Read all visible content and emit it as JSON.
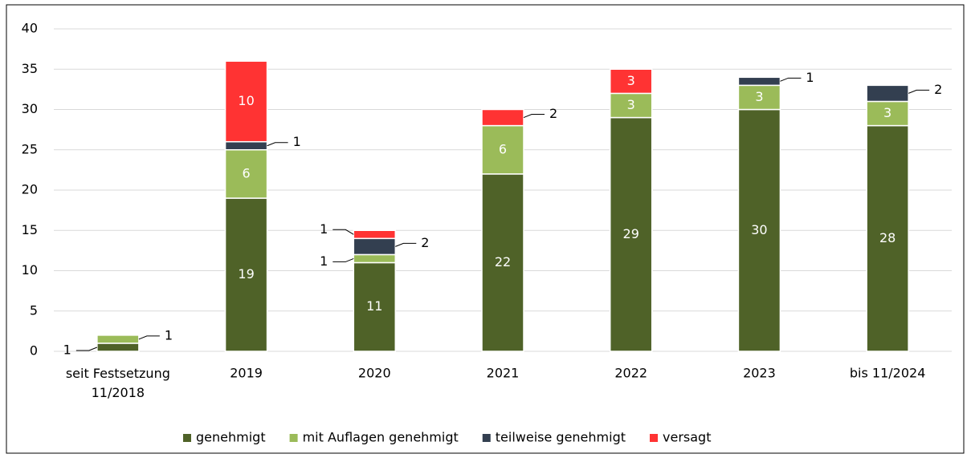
{
  "chart_data": {
    "type": "stacked_bar",
    "categories": [
      "seit Festsetzung\n11/2018",
      "2019",
      "2020",
      "2021",
      "2022",
      "2023",
      "bis 11/2024"
    ],
    "series": [
      {
        "name": "genehmigt",
        "color": "#4f6228",
        "values": [
          1,
          19,
          11,
          22,
          29,
          30,
          28
        ]
      },
      {
        "name": "mit Auflagen genehmigt",
        "color": "#9bbb59",
        "values": [
          1,
          6,
          1,
          6,
          3,
          3,
          3
        ]
      },
      {
        "name": "teilweise genehmigt",
        "color": "#333f50",
        "values": [
          0,
          1,
          2,
          0,
          0,
          1,
          2
        ]
      },
      {
        "name": "versagt",
        "color": "#ff3333",
        "values": [
          0,
          10,
          1,
          2,
          3,
          0,
          0
        ]
      }
    ],
    "ylim": [
      0,
      40
    ],
    "yticks": [
      0,
      5,
      10,
      15,
      20,
      25,
      30,
      35,
      40
    ],
    "grid": true,
    "legend": "bottom"
  }
}
